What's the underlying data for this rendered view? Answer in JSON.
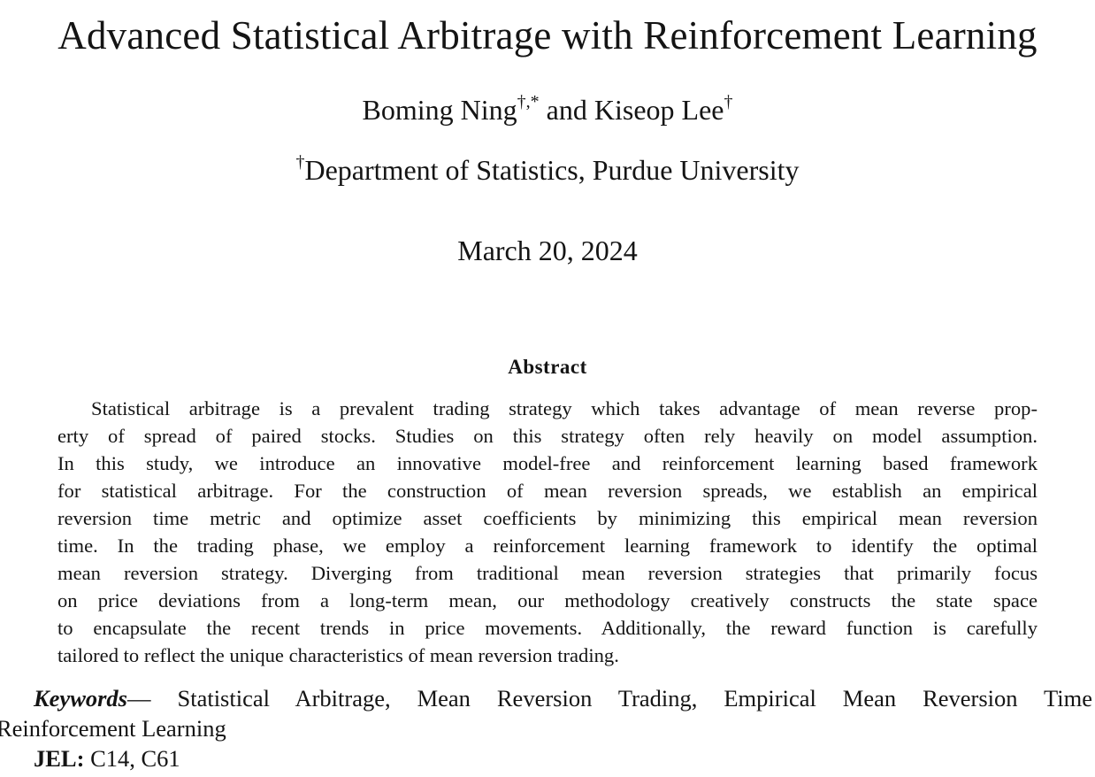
{
  "paper": {
    "title": "Advanced Statistical Arbitrage with Reinforcement Learning",
    "authors": {
      "author1": "Boming Ning",
      "author1_marks": "†,*",
      "connector": " and ",
      "author2": "Kiseop Lee",
      "author2_marks": "†"
    },
    "affiliation": {
      "mark": "†",
      "text": "Department of Statistics, Purdue University"
    },
    "date": "March 20, 2024"
  },
  "abstract": {
    "heading": "Abstract",
    "lines": [
      "Statistical arbitrage is a prevalent trading strategy which takes advantage of mean reverse prop-",
      "erty of spread of paired stocks. Studies on this strategy often rely heavily on model assumption.",
      "In this study, we introduce an innovative model-free and reinforcement learning based framework",
      "for statistical arbitrage. For the construction of mean reversion spreads, we establish an empirical",
      "reversion time metric and optimize asset coefficients by minimizing this empirical mean reversion",
      "time. In the trading phase, we employ a reinforcement learning framework to identify the optimal",
      "mean reversion strategy. Diverging from traditional mean reversion strategies that primarily focus",
      "on price deviations from a long-term mean, our methodology creatively constructs the state space",
      "to encapsulate the recent trends in price movements. Additionally, the reward function is carefully",
      "tailored to reflect the unique characteristics of mean reversion trading."
    ]
  },
  "keywords": {
    "label": "Keywords",
    "dash": "—",
    "line1": "Statistical Arbitrage, Mean Reversion Trading, Empirical Mean Reversion Time",
    "line2": "Reinforcement Learning"
  },
  "jel": {
    "label": "JEL:",
    "codes": "C14, C61"
  }
}
